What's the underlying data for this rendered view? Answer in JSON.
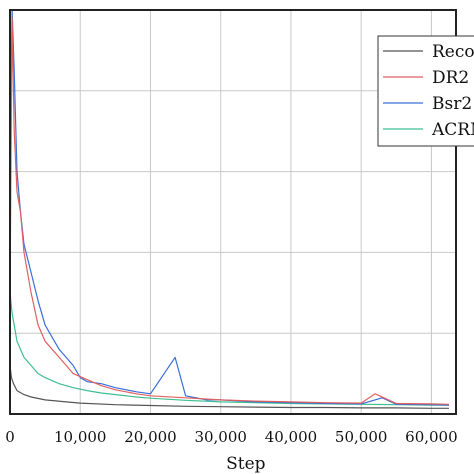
{
  "chart_data": {
    "type": "line",
    "title": "",
    "xlabel": "Step",
    "ylabel": "",
    "xlim": [
      0,
      63500
    ],
    "ylim": [
      0,
      1
    ],
    "x_ticks": [
      0,
      10000,
      20000,
      30000,
      40000,
      50000,
      60000
    ],
    "x_tick_labels": [
      "0",
      "10,000",
      "20,000",
      "30,000",
      "40,000",
      "50,000",
      "60,000"
    ],
    "grid": true,
    "legend_position": "top-right",
    "legend": [
      "Reco",
      "DR2",
      "Bsr2",
      "ACRM"
    ],
    "series": [
      {
        "name": "Reco",
        "color": "#555555",
        "x": [
          0,
          200,
          500,
          1000,
          2000,
          3000,
          5000,
          8000,
          10000,
          15000,
          20000,
          25000,
          30000,
          35000,
          40000,
          45000,
          50000,
          55000,
          60000,
          62500
        ],
        "y": [
          0.12,
          0.09,
          0.075,
          0.058,
          0.048,
          0.042,
          0.035,
          0.03,
          0.027,
          0.023,
          0.021,
          0.019,
          0.018,
          0.017,
          0.016,
          0.016,
          0.015,
          0.015,
          0.014,
          0.014
        ]
      },
      {
        "name": "DR2",
        "color": "#e06060",
        "x": [
          0,
          300,
          600,
          1000,
          1500,
          2000,
          3000,
          4000,
          5000,
          7000,
          9000,
          11000,
          13000,
          15000,
          18000,
          20000,
          25000,
          30000,
          35000,
          40000,
          45000,
          50000,
          52000,
          55000,
          60000,
          62500
        ],
        "y": [
          0.3,
          0.98,
          0.7,
          0.55,
          0.5,
          0.4,
          0.3,
          0.22,
          0.18,
          0.14,
          0.1,
          0.085,
          0.07,
          0.06,
          0.05,
          0.045,
          0.04,
          0.035,
          0.032,
          0.03,
          0.028,
          0.027,
          0.05,
          0.026,
          0.025,
          0.024
        ]
      },
      {
        "name": "Bsr2",
        "color": "#3a6fd8",
        "x": [
          0,
          300,
          600,
          1000,
          1500,
          2000,
          3000,
          4000,
          5000,
          7000,
          9000,
          10000,
          11000,
          13000,
          15000,
          18000,
          20000,
          23500,
          25000,
          28000,
          30000,
          35000,
          40000,
          45000,
          50000,
          53000,
          55000,
          60000,
          62500
        ],
        "y": [
          0.6,
          1.0,
          0.85,
          0.6,
          0.5,
          0.42,
          0.35,
          0.28,
          0.22,
          0.16,
          0.12,
          0.09,
          0.08,
          0.075,
          0.065,
          0.055,
          0.05,
          0.14,
          0.045,
          0.035,
          0.035,
          0.03,
          0.028,
          0.026,
          0.025,
          0.04,
          0.024,
          0.023,
          0.022
        ]
      },
      {
        "name": "ACRM",
        "color": "#3fbf8f",
        "x": [
          0,
          300,
          600,
          1000,
          1500,
          2000,
          3000,
          4000,
          5000,
          7000,
          9000,
          11000,
          13000,
          15000,
          18000,
          20000,
          25000,
          30000,
          35000,
          40000,
          45000,
          50000,
          55000,
          60000,
          62500
        ],
        "y": [
          0.3,
          0.25,
          0.22,
          0.18,
          0.16,
          0.14,
          0.12,
          0.1,
          0.09,
          0.075,
          0.065,
          0.058,
          0.052,
          0.048,
          0.042,
          0.039,
          0.034,
          0.03,
          0.028,
          0.026,
          0.025,
          0.024,
          0.023,
          0.022,
          0.022
        ]
      }
    ]
  }
}
